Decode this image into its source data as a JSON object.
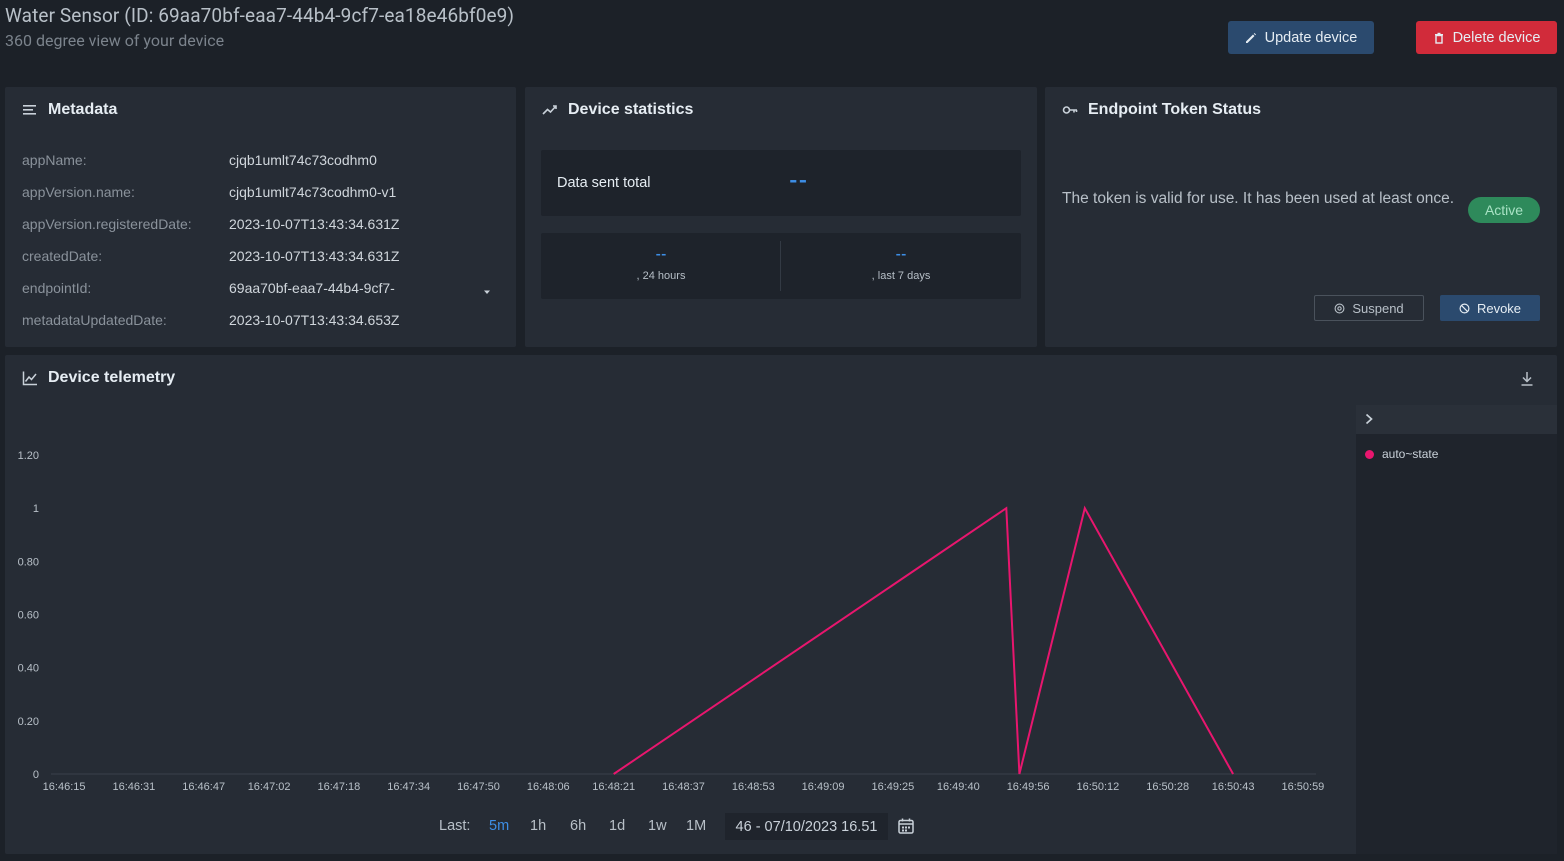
{
  "header": {
    "title": "Water Sensor (ID: 69aa70bf-eaa7-44b4-9cf7-ea18e46bf0e9)",
    "subtitle": "360 degree view of your device",
    "update_label": "Update device",
    "delete_label": "Delete device",
    "delete_color": "#d12b3a",
    "update_color": "#2b4a6e"
  },
  "metadata": {
    "title": "Metadata",
    "rows": [
      {
        "key": "appName:",
        "value": "cjqb1umlt74c73codhm0"
      },
      {
        "key": "appVersion.name:",
        "value": "cjqb1umlt74c73codhm0-v1"
      },
      {
        "key": "appVersion.registeredDate:",
        "value": "2023-10-07T13:43:34.631Z"
      },
      {
        "key": "createdDate:",
        "value": "2023-10-07T13:43:34.631Z"
      },
      {
        "key": "endpointId:",
        "value": "69aa70bf-eaa7-44b4-9cf7-"
      },
      {
        "key": "metadataUpdatedDate:",
        "value": "2023-10-07T13:43:34.653Z"
      }
    ]
  },
  "stats": {
    "title": "Device statistics",
    "total_label": "Data sent total",
    "total_value": "--",
    "day_value": "--",
    "day_label": ", 24 hours",
    "week_value": "--",
    "week_label": ", last 7 days"
  },
  "token": {
    "title": "Endpoint Token Status",
    "text": "The token is valid for use. It has been used at least once.",
    "status": "Active",
    "status_color": "#2e8a5b",
    "suspend_label": "Suspend",
    "revoke_label": "Revoke"
  },
  "telemetry": {
    "title": "Device telemetry",
    "range_label": "Last:",
    "range_options": [
      "5m",
      "1h",
      "6h",
      "1d",
      "1w",
      "1M"
    ],
    "range_active": "5m",
    "date_value": "46 - 07/10/2023 16.51"
  },
  "chart_data": {
    "type": "line",
    "title": "",
    "xlabel": "",
    "ylabel": "",
    "x_ticks": [
      "16:46:15",
      "16:46:31",
      "16:46:47",
      "16:47:02",
      "16:47:18",
      "16:47:34",
      "16:47:50",
      "16:48:06",
      "16:48:21",
      "16:48:37",
      "16:48:53",
      "16:49:09",
      "16:49:25",
      "16:49:40",
      "16:49:56",
      "16:50:12",
      "16:50:28",
      "16:50:43",
      "16:50:59"
    ],
    "y_ticks": [
      "0",
      "0.20",
      "0.40",
      "0.60",
      "0.80",
      "1",
      "1.20"
    ],
    "ylim": [
      0,
      1.2
    ],
    "grid": false,
    "legend": "right",
    "series": [
      {
        "name": "auto~state",
        "color": "#e8166e",
        "x": [
          "16:48:21",
          "16:49:51",
          "16:49:54",
          "16:50:09",
          "16:50:43"
        ],
        "values": [
          0,
          1,
          0,
          1,
          0
        ]
      }
    ]
  }
}
